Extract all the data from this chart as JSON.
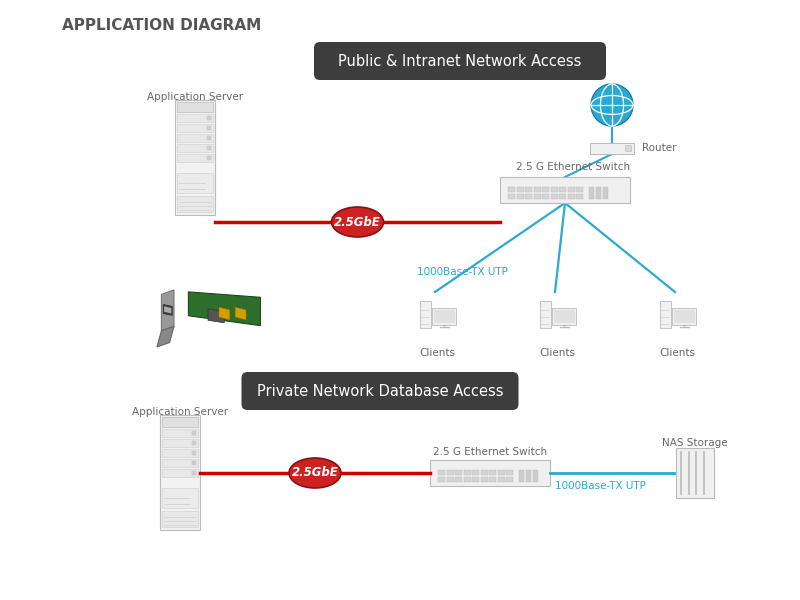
{
  "title": "APPLICATION DIAGRAM",
  "title_fontsize": 11,
  "title_color": "#555555",
  "bg_color": "#ffffff",
  "section1_label": "Public & Intranet Network Access",
  "section2_label": "Private Network Database Access",
  "section_label_bg": "#3d3d3d",
  "section_label_color": "#ffffff",
  "red_line_color": "#cc0000",
  "blue_line_color": "#29aad4",
  "gbe_badge_color": "#cc2222",
  "gbe_text_color": "#ffffff",
  "gbe_text": "2.5GbE",
  "label_1000base": "1000Base-TX UTP",
  "label_1000base_color": "#29aad4",
  "router_label": "Router",
  "switch_label_top": "2.5 G Ethernet Switch",
  "switch_label_bottom": "2.5 G Ethernet Switch",
  "app_server_label": "Application Server",
  "clients_label": "Clients",
  "nas_label": "NAS Storage",
  "device_fill": "#eeeeee",
  "device_stroke": "#aaaaaa",
  "globe_color": "#29aad4",
  "globe_line": "#1080aa"
}
